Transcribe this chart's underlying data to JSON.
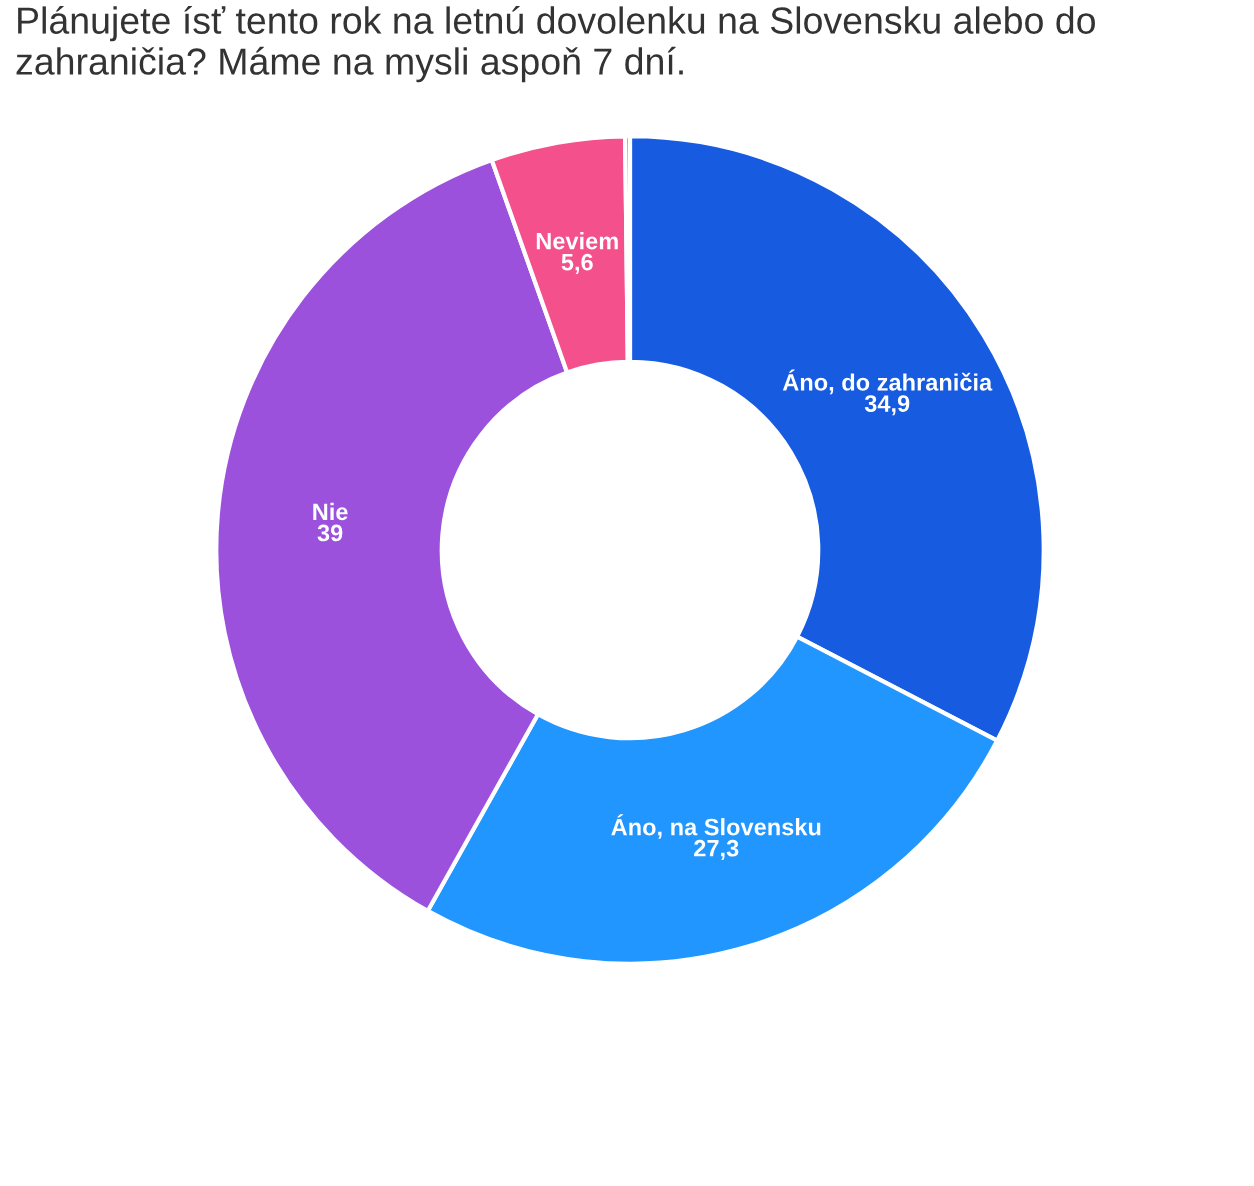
{
  "chart_data": {
    "type": "donut",
    "title": "Plánujete ísť tento rok na letnú dovolenku na Slovensku alebo do zahraničia? Máme na mysli aspoň 7 dní.",
    "categories": [
      "Áno, do zahraničia",
      "Áno, na Slovensku",
      "Nie",
      "Neviem",
      null
    ],
    "values": [
      34.9,
      27.3,
      39,
      5.6,
      0.2
    ],
    "value_labels": [
      "34,9",
      "27,3",
      "39",
      "5,6",
      null
    ],
    "colors": [
      "#175ce0",
      "#2196ff",
      "#9b51dc",
      "#f4508c",
      "#e8711c"
    ],
    "legend": false
  }
}
